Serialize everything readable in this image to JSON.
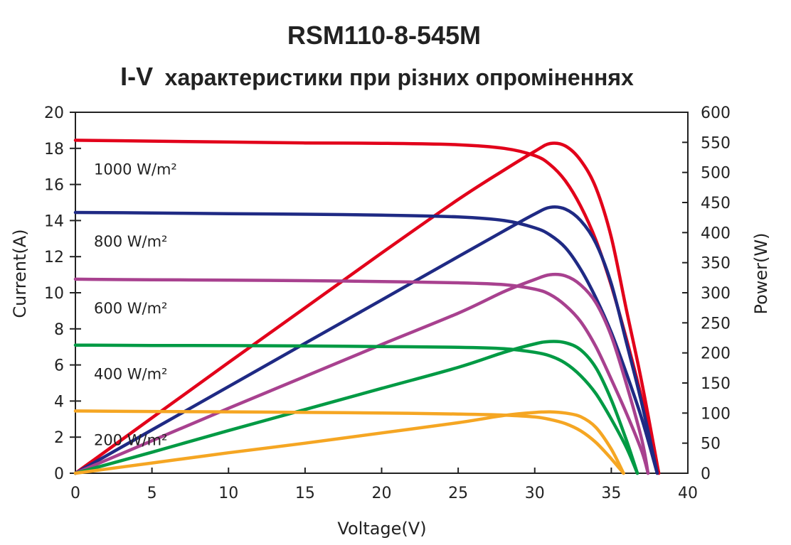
{
  "chart_data": {
    "type": "line",
    "title": "RSM110-8-545M",
    "subtitle_prefix": "I-V",
    "subtitle": "характеристики при різних опроміненнях",
    "xlabel": "Voltage(V)",
    "ylabel_left": "Current(A)",
    "ylabel_right": "Power(W)",
    "xlim": [
      0,
      40
    ],
    "ylim_left": [
      0,
      20
    ],
    "ylim_right": [
      0,
      600
    ],
    "x_ticks": [
      0,
      5,
      10,
      15,
      20,
      25,
      30,
      35,
      40
    ],
    "y_left_ticks": [
      0,
      2,
      4,
      6,
      8,
      10,
      12,
      14,
      16,
      18,
      20
    ],
    "y_right_ticks": [
      0,
      50,
      100,
      150,
      200,
      250,
      300,
      350,
      400,
      450,
      500,
      550,
      600
    ],
    "grid": false,
    "series": [
      {
        "name": "1000 W/m²",
        "color": "#e2001a",
        "isc": 18.45,
        "voc": 38.1,
        "iv": [
          [
            0,
            18.45
          ],
          [
            5,
            18.4
          ],
          [
            10,
            18.35
          ],
          [
            15,
            18.3
          ],
          [
            20,
            18.28
          ],
          [
            25,
            18.2
          ],
          [
            28,
            18.0
          ],
          [
            30,
            17.6
          ],
          [
            31,
            17.1
          ],
          [
            32,
            16.2
          ],
          [
            33,
            14.8
          ],
          [
            34,
            12.9
          ],
          [
            35,
            10.4
          ],
          [
            36,
            7.4
          ],
          [
            37,
            4.1
          ],
          [
            38.1,
            0
          ]
        ],
        "pv": [
          [
            0,
            0
          ],
          [
            5,
            92
          ],
          [
            10,
            184
          ],
          [
            15,
            275
          ],
          [
            20,
            366
          ],
          [
            25,
            455
          ],
          [
            28,
            504
          ],
          [
            30,
            535
          ],
          [
            31,
            548
          ],
          [
            32,
            544
          ],
          [
            33,
            520
          ],
          [
            34,
            474
          ],
          [
            35,
            392
          ],
          [
            36,
            270
          ],
          [
            37,
            150
          ],
          [
            38.1,
            0
          ]
        ]
      },
      {
        "name": "800 W/m²",
        "color": "#1f2a84",
        "isc": 14.45,
        "voc": 38.0,
        "iv": [
          [
            0,
            14.45
          ],
          [
            5,
            14.42
          ],
          [
            10,
            14.38
          ],
          [
            15,
            14.35
          ],
          [
            20,
            14.3
          ],
          [
            25,
            14.2
          ],
          [
            28,
            14.0
          ],
          [
            30,
            13.6
          ],
          [
            31,
            13.2
          ],
          [
            32,
            12.5
          ],
          [
            33,
            11.3
          ],
          [
            34,
            9.7
          ],
          [
            35,
            7.8
          ],
          [
            36,
            5.5
          ],
          [
            37,
            3.0
          ],
          [
            38.0,
            0
          ]
        ],
        "pv": [
          [
            0,
            0
          ],
          [
            5,
            72
          ],
          [
            10,
            144
          ],
          [
            15,
            216
          ],
          [
            20,
            288
          ],
          [
            25,
            360
          ],
          [
            28,
            403
          ],
          [
            30,
            431
          ],
          [
            31,
            442
          ],
          [
            32,
            439
          ],
          [
            33,
            420
          ],
          [
            34,
            382
          ],
          [
            35,
            315
          ],
          [
            36,
            216
          ],
          [
            37,
            115
          ],
          [
            38.0,
            0
          ]
        ]
      },
      {
        "name": "600 W/m²",
        "color": "#a8418f",
        "isc": 10.75,
        "voc": 37.4,
        "iv": [
          [
            0,
            10.75
          ],
          [
            5,
            10.72
          ],
          [
            10,
            10.7
          ],
          [
            15,
            10.67
          ],
          [
            20,
            10.62
          ],
          [
            25,
            10.55
          ],
          [
            28,
            10.45
          ],
          [
            30,
            10.2
          ],
          [
            31,
            9.9
          ],
          [
            32,
            9.3
          ],
          [
            33,
            8.4
          ],
          [
            34,
            7.0
          ],
          [
            35,
            5.2
          ],
          [
            36,
            3.3
          ],
          [
            37,
            1.2
          ],
          [
            37.4,
            0
          ]
        ],
        "pv": [
          [
            0,
            0
          ],
          [
            5,
            54
          ],
          [
            10,
            108
          ],
          [
            15,
            161
          ],
          [
            20,
            214
          ],
          [
            25,
            266
          ],
          [
            28,
            302
          ],
          [
            30,
            322
          ],
          [
            31,
            330
          ],
          [
            32,
            328
          ],
          [
            33,
            313
          ],
          [
            34,
            283
          ],
          [
            35,
            228
          ],
          [
            36,
            147
          ],
          [
            37,
            55
          ],
          [
            37.4,
            0
          ]
        ]
      },
      {
        "name": "400 W/m²",
        "color": "#009a44",
        "isc": 7.1,
        "voc": 36.7,
        "iv": [
          [
            0,
            7.1
          ],
          [
            5,
            7.08
          ],
          [
            10,
            7.07
          ],
          [
            15,
            7.05
          ],
          [
            20,
            7.02
          ],
          [
            25,
            6.98
          ],
          [
            28,
            6.9
          ],
          [
            30,
            6.7
          ],
          [
            31,
            6.5
          ],
          [
            32,
            6.1
          ],
          [
            33,
            5.4
          ],
          [
            34,
            4.4
          ],
          [
            35,
            3.0
          ],
          [
            36,
            1.4
          ],
          [
            36.7,
            0
          ]
        ],
        "pv": [
          [
            0,
            0
          ],
          [
            5,
            35
          ],
          [
            10,
            71
          ],
          [
            15,
            106
          ],
          [
            20,
            141
          ],
          [
            25,
            176
          ],
          [
            28,
            201
          ],
          [
            30,
            215
          ],
          [
            31,
            219
          ],
          [
            32,
            217
          ],
          [
            33,
            205
          ],
          [
            34,
            175
          ],
          [
            35,
            122
          ],
          [
            36,
            54
          ],
          [
            36.7,
            0
          ]
        ]
      },
      {
        "name": "200 W/m²",
        "color": "#f5a623",
        "isc": 3.45,
        "voc": 35.8,
        "iv": [
          [
            0,
            3.45
          ],
          [
            5,
            3.42
          ],
          [
            10,
            3.4
          ],
          [
            15,
            3.37
          ],
          [
            20,
            3.34
          ],
          [
            25,
            3.28
          ],
          [
            28,
            3.22
          ],
          [
            30,
            3.12
          ],
          [
            31,
            2.98
          ],
          [
            32,
            2.75
          ],
          [
            33,
            2.35
          ],
          [
            34,
            1.7
          ],
          [
            35,
            0.8
          ],
          [
            35.8,
            0
          ]
        ],
        "pv": [
          [
            0,
            0
          ],
          [
            5,
            17
          ],
          [
            10,
            34
          ],
          [
            15,
            50
          ],
          [
            20,
            67
          ],
          [
            25,
            84
          ],
          [
            28,
            96
          ],
          [
            30,
            101
          ],
          [
            31,
            102
          ],
          [
            32,
            100
          ],
          [
            33,
            94
          ],
          [
            34,
            76
          ],
          [
            35,
            40
          ],
          [
            35.8,
            0
          ]
        ]
      }
    ]
  }
}
